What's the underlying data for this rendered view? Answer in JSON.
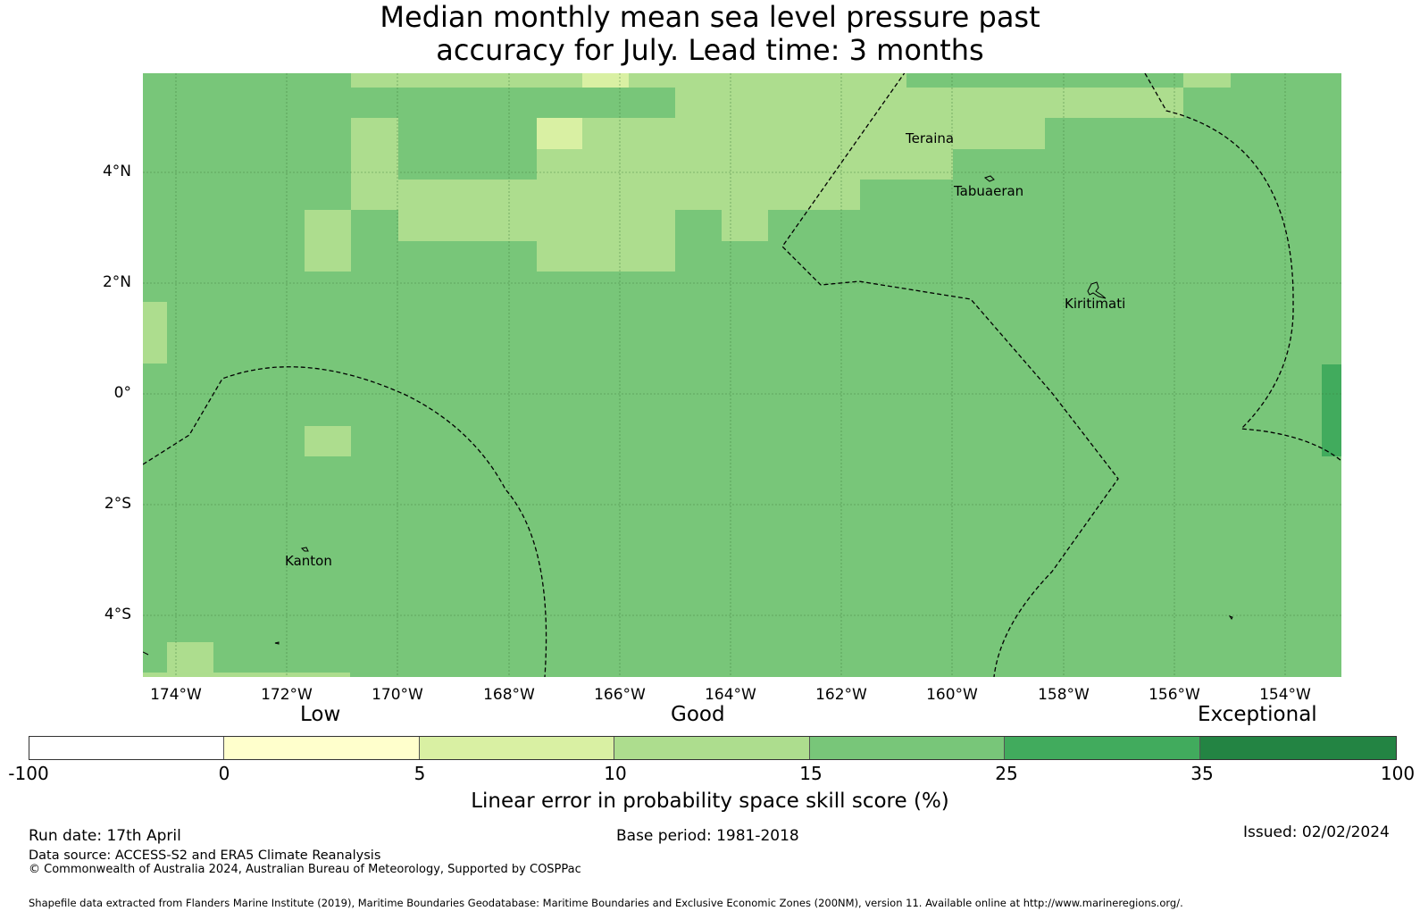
{
  "title": {
    "line1": "Median monthly mean sea level pressure past",
    "line2": "accuracy for July. Lead time: 3 months"
  },
  "map": {
    "lat_labels": [
      "4°N",
      "2°N",
      "0°",
      "2°S",
      "4°S"
    ],
    "lon_labels": [
      "174°W",
      "172°W",
      "170°W",
      "168°W",
      "166°W",
      "164°W",
      "162°W",
      "160°W",
      "158°W",
      "156°W",
      "154°W"
    ],
    "places": {
      "teraina": "Teraina",
      "tabuaeran": "Tabuaeran",
      "kiritimati": "Kiritimati",
      "kanton": "Kanton"
    },
    "base_color": "#7ac677"
  },
  "legend": {
    "categories": {
      "low": "Low",
      "good": "Good",
      "exceptional": "Exceptional"
    },
    "ticks": [
      "-100",
      "0",
      "5",
      "10",
      "15",
      "25",
      "35",
      "100"
    ],
    "colors": [
      "#ffffff",
      "#ffffcc",
      "#d9f0a3",
      "#addd8e",
      "#78c679",
      "#41ab5d",
      "#238443"
    ],
    "title": "Linear error in probability space skill score (%)"
  },
  "footer": {
    "run_date": "Run date: 17th April",
    "base_period": "Base period: 1981-2018",
    "issued": "Issued: 02/02/2024",
    "data_source": "Data source: ACCESS-S2 and ERA5 Climate Reanalysis",
    "copyright": "© Commonwealth of Australia 2024, Australian Bureau of Meteorology, Supported by COSPPac",
    "shapefile": "Shapefile data extracted from Flanders Marine Institute (2019), Maritime Boundaries Geodatabase: Maritime Boundaries and Exclusive Economic Zones (200NM), version 11. Available online at http://www.marineregions.org/."
  }
}
